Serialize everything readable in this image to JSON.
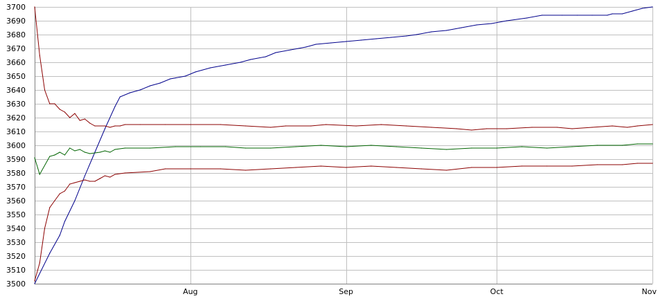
{
  "chart_data": {
    "type": "line",
    "title": "",
    "xlabel": "",
    "ylabel": "",
    "ylim": [
      3500,
      3700
    ],
    "xlim": [
      "2009-07-01",
      "2009-11-01"
    ],
    "yticks": [
      3500,
      3510,
      3520,
      3530,
      3540,
      3550,
      3560,
      3570,
      3580,
      3590,
      3600,
      3610,
      3620,
      3630,
      3640,
      3650,
      3660,
      3670,
      3680,
      3690,
      3700
    ],
    "xticks": [
      {
        "label": "Aug",
        "date": "2009-08-01"
      },
      {
        "label": "Sep",
        "date": "2009-09-01"
      },
      {
        "label": "Oct",
        "date": "2009-10-01"
      },
      {
        "label": "Nov",
        "date": "2009-11-01"
      }
    ],
    "grid": true,
    "colors": {
      "blue": "#00008b",
      "red": "#8b0000",
      "green": "#006400",
      "grid": "#c0c0c0"
    },
    "series": [
      {
        "color": "#00008b",
        "points": [
          [
            "2009-07-01",
            3500
          ],
          [
            "2009-07-04",
            3522
          ],
          [
            "2009-07-06",
            3535
          ],
          [
            "2009-07-07",
            3545
          ],
          [
            "2009-07-09",
            3560
          ],
          [
            "2009-07-11",
            3578
          ],
          [
            "2009-07-13",
            3595
          ],
          [
            "2009-07-15",
            3612
          ],
          [
            "2009-07-17",
            3628
          ],
          [
            "2009-07-18",
            3635
          ],
          [
            "2009-07-20",
            3638
          ],
          [
            "2009-07-22",
            3640
          ],
          [
            "2009-07-24",
            3643
          ],
          [
            "2009-07-26",
            3645
          ],
          [
            "2009-07-28",
            3648
          ],
          [
            "2009-07-31",
            3650
          ],
          [
            "2009-08-02",
            3653
          ],
          [
            "2009-08-05",
            3656
          ],
          [
            "2009-08-08",
            3658
          ],
          [
            "2009-08-11",
            3660
          ],
          [
            "2009-08-13",
            3662
          ],
          [
            "2009-08-16",
            3664
          ],
          [
            "2009-08-18",
            3667
          ],
          [
            "2009-08-21",
            3669
          ],
          [
            "2009-08-24",
            3671
          ],
          [
            "2009-08-26",
            3673
          ],
          [
            "2009-08-29",
            3674
          ],
          [
            "2009-09-01",
            3675
          ],
          [
            "2009-09-04",
            3676
          ],
          [
            "2009-09-07",
            3677
          ],
          [
            "2009-09-10",
            3678
          ],
          [
            "2009-09-13",
            3679
          ],
          [
            "2009-09-15",
            3680
          ],
          [
            "2009-09-18",
            3682
          ],
          [
            "2009-09-21",
            3683
          ],
          [
            "2009-09-24",
            3685
          ],
          [
            "2009-09-27",
            3687
          ],
          [
            "2009-09-30",
            3688
          ],
          [
            "2009-10-03",
            3690
          ],
          [
            "2009-10-07",
            3692
          ],
          [
            "2009-10-10",
            3694
          ],
          [
            "2009-10-14",
            3694
          ],
          [
            "2009-10-17",
            3694
          ],
          [
            "2009-10-20",
            3694
          ],
          [
            "2009-10-23",
            3694
          ],
          [
            "2009-10-24",
            3695
          ],
          [
            "2009-10-26",
            3695
          ],
          [
            "2009-10-28",
            3697
          ],
          [
            "2009-10-30",
            3699
          ],
          [
            "2009-11-01",
            3700
          ]
        ]
      },
      {
        "color": "#8b0000",
        "points": [
          [
            "2009-07-01",
            3700
          ],
          [
            "2009-07-02",
            3665
          ],
          [
            "2009-07-03",
            3640
          ],
          [
            "2009-07-04",
            3630
          ],
          [
            "2009-07-05",
            3630
          ],
          [
            "2009-07-06",
            3626
          ],
          [
            "2009-07-07",
            3624
          ],
          [
            "2009-07-08",
            3620
          ],
          [
            "2009-07-09",
            3623
          ],
          [
            "2009-07-10",
            3618
          ],
          [
            "2009-07-11",
            3619
          ],
          [
            "2009-07-12",
            3616
          ],
          [
            "2009-07-13",
            3614
          ],
          [
            "2009-07-15",
            3614
          ],
          [
            "2009-07-16",
            3613
          ],
          [
            "2009-07-17",
            3614
          ],
          [
            "2009-07-18",
            3614
          ],
          [
            "2009-07-19",
            3615
          ],
          [
            "2009-07-22",
            3615
          ],
          [
            "2009-07-27",
            3615
          ],
          [
            "2009-08-01",
            3615
          ],
          [
            "2009-08-07",
            3615
          ],
          [
            "2009-08-12",
            3614
          ],
          [
            "2009-08-17",
            3613
          ],
          [
            "2009-08-20",
            3614
          ],
          [
            "2009-08-25",
            3614
          ],
          [
            "2009-08-28",
            3615
          ],
          [
            "2009-09-03",
            3614
          ],
          [
            "2009-09-08",
            3615
          ],
          [
            "2009-09-13",
            3614
          ],
          [
            "2009-09-18",
            3613
          ],
          [
            "2009-09-23",
            3612
          ],
          [
            "2009-09-26",
            3611
          ],
          [
            "2009-09-29",
            3612
          ],
          [
            "2009-10-03",
            3612
          ],
          [
            "2009-10-08",
            3613
          ],
          [
            "2009-10-13",
            3613
          ],
          [
            "2009-10-16",
            3612
          ],
          [
            "2009-10-20",
            3613
          ],
          [
            "2009-10-24",
            3614
          ],
          [
            "2009-10-27",
            3613
          ],
          [
            "2009-10-29",
            3614
          ],
          [
            "2009-11-01",
            3615
          ]
        ]
      },
      {
        "color": "#006400",
        "points": [
          [
            "2009-07-01",
            3591
          ],
          [
            "2009-07-02",
            3579
          ],
          [
            "2009-07-04",
            3592
          ],
          [
            "2009-07-05",
            3593
          ],
          [
            "2009-07-06",
            3595
          ],
          [
            "2009-07-07",
            3593
          ],
          [
            "2009-07-08",
            3598
          ],
          [
            "2009-07-09",
            3596
          ],
          [
            "2009-07-10",
            3597
          ],
          [
            "2009-07-11",
            3595
          ],
          [
            "2009-07-12",
            3594
          ],
          [
            "2009-07-14",
            3595
          ],
          [
            "2009-07-15",
            3596
          ],
          [
            "2009-07-16",
            3595
          ],
          [
            "2009-07-17",
            3597
          ],
          [
            "2009-07-19",
            3598
          ],
          [
            "2009-07-24",
            3598
          ],
          [
            "2009-07-29",
            3599
          ],
          [
            "2009-08-03",
            3599
          ],
          [
            "2009-08-08",
            3599
          ],
          [
            "2009-08-12",
            3598
          ],
          [
            "2009-08-17",
            3598
          ],
          [
            "2009-08-22",
            3599
          ],
          [
            "2009-08-27",
            3600
          ],
          [
            "2009-09-01",
            3599
          ],
          [
            "2009-09-06",
            3600
          ],
          [
            "2009-09-11",
            3599
          ],
          [
            "2009-09-16",
            3598
          ],
          [
            "2009-09-21",
            3597
          ],
          [
            "2009-09-26",
            3598
          ],
          [
            "2009-10-01",
            3598
          ],
          [
            "2009-10-06",
            3599
          ],
          [
            "2009-10-11",
            3598
          ],
          [
            "2009-10-16",
            3599
          ],
          [
            "2009-10-21",
            3600
          ],
          [
            "2009-10-26",
            3600
          ],
          [
            "2009-10-29",
            3601
          ],
          [
            "2009-11-01",
            3601
          ]
        ]
      },
      {
        "color": "#8b0000",
        "points": [
          [
            "2009-07-01",
            3502
          ],
          [
            "2009-07-02",
            3515
          ],
          [
            "2009-07-03",
            3540
          ],
          [
            "2009-07-04",
            3555
          ],
          [
            "2009-07-05",
            3560
          ],
          [
            "2009-07-06",
            3565
          ],
          [
            "2009-07-07",
            3567
          ],
          [
            "2009-07-08",
            3572
          ],
          [
            "2009-07-09",
            3573
          ],
          [
            "2009-07-10",
            3574
          ],
          [
            "2009-07-11",
            3575
          ],
          [
            "2009-07-12",
            3574
          ],
          [
            "2009-07-13",
            3574
          ],
          [
            "2009-07-14",
            3576
          ],
          [
            "2009-07-15",
            3578
          ],
          [
            "2009-07-16",
            3577
          ],
          [
            "2009-07-17",
            3579
          ],
          [
            "2009-07-19",
            3580
          ],
          [
            "2009-07-24",
            3581
          ],
          [
            "2009-07-27",
            3583
          ],
          [
            "2009-08-01",
            3583
          ],
          [
            "2009-08-07",
            3583
          ],
          [
            "2009-08-12",
            3582
          ],
          [
            "2009-08-17",
            3583
          ],
          [
            "2009-08-22",
            3584
          ],
          [
            "2009-08-27",
            3585
          ],
          [
            "2009-09-01",
            3584
          ],
          [
            "2009-09-06",
            3585
          ],
          [
            "2009-09-11",
            3584
          ],
          [
            "2009-09-16",
            3583
          ],
          [
            "2009-09-21",
            3582
          ],
          [
            "2009-09-26",
            3584
          ],
          [
            "2009-10-01",
            3584
          ],
          [
            "2009-10-06",
            3585
          ],
          [
            "2009-10-11",
            3585
          ],
          [
            "2009-10-16",
            3585
          ],
          [
            "2009-10-21",
            3586
          ],
          [
            "2009-10-26",
            3586
          ],
          [
            "2009-10-29",
            3587
          ],
          [
            "2009-11-01",
            3587
          ]
        ]
      }
    ]
  }
}
